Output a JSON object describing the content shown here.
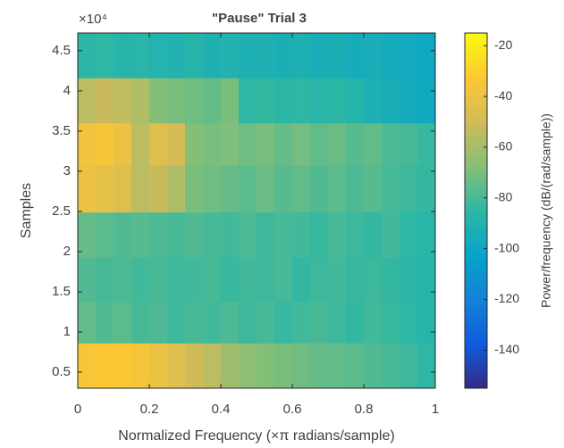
{
  "chart_data": {
    "type": "heatmap",
    "title": "\"Pause\" Trial 3",
    "xlabel": "Normalized Frequency (×π radians/sample)",
    "ylabel": "Samples",
    "y_exponent_label": "×10⁴",
    "colorbar_label": "Power/frequency (dB/(rad/sample))",
    "xlim": [
      0,
      1
    ],
    "xticks": [
      0,
      0.2,
      0.4,
      0.6,
      0.8,
      1
    ],
    "ylim": [
      3000,
      47200
    ],
    "yticks": [
      {
        "value": 5000,
        "label": "0.5"
      },
      {
        "value": 10000,
        "label": "1"
      },
      {
        "value": 15000,
        "label": "1.5"
      },
      {
        "value": 20000,
        "label": "2"
      },
      {
        "value": 25000,
        "label": "2.5"
      },
      {
        "value": 30000,
        "label": "3"
      },
      {
        "value": 35000,
        "label": "3.5"
      },
      {
        "value": 40000,
        "label": "4"
      },
      {
        "value": 45000,
        "label": "4.5"
      }
    ],
    "x_edges": [
      0,
      0.05,
      0.1,
      0.15,
      0.2,
      0.25,
      0.3,
      0.35,
      0.4,
      0.45,
      0.5,
      0.55,
      0.6,
      0.65,
      0.7,
      0.75,
      0.8,
      0.85,
      0.9,
      0.95,
      1
    ],
    "y_edges": [
      3000,
      8600,
      13800,
      19300,
      24900,
      30800,
      36000,
      41600,
      47200
    ],
    "clim": [
      -155,
      -15
    ],
    "cticks": [
      -140,
      -120,
      -100,
      -80,
      -60,
      -40,
      -20
    ],
    "colormap": [
      "#352a87",
      "#0f5cdd",
      "#1481d6",
      "#06a4ca",
      "#2eb7a4",
      "#87bf77",
      "#d1bb59",
      "#fec832",
      "#f9fb0e"
    ],
    "values": [
      [
        -35,
        -33,
        -34,
        -36,
        -40,
        -45,
        -50,
        -55,
        -62,
        -66,
        -68,
        -70,
        -72,
        -74,
        -75,
        -76,
        -78,
        -80,
        -82,
        -85
      ],
      [
        -75,
        -78,
        -76,
        -80,
        -79,
        -82,
        -80,
        -81,
        -79,
        -82,
        -80,
        -83,
        -81,
        -80,
        -82,
        -84,
        -81,
        -83,
        -85,
        -88
      ],
      [
        -78,
        -80,
        -79,
        -81,
        -80,
        -82,
        -81,
        -80,
        -83,
        -81,
        -82,
        -80,
        -84,
        -82,
        -81,
        -83,
        -82,
        -84,
        -86,
        -88
      ],
      [
        -74,
        -76,
        -78,
        -77,
        -79,
        -80,
        -78,
        -80,
        -81,
        -79,
        -82,
        -80,
        -81,
        -83,
        -80,
        -82,
        -84,
        -81,
        -85,
        -87
      ],
      [
        -40,
        -42,
        -45,
        -55,
        -52,
        -58,
        -70,
        -72,
        -74,
        -76,
        -73,
        -77,
        -75,
        -78,
        -76,
        -79,
        -77,
        -80,
        -82,
        -84
      ],
      [
        -38,
        -36,
        -40,
        -55,
        -45,
        -48,
        -68,
        -70,
        -69,
        -72,
        -70,
        -74,
        -71,
        -75,
        -73,
        -77,
        -75,
        -79,
        -80,
        -83
      ],
      [
        -55,
        -52,
        -54,
        -58,
        -68,
        -70,
        -72,
        -74,
        -70,
        -85,
        -84,
        -86,
        -85,
        -87,
        -86,
        -88,
        -92,
        -94,
        -96,
        -98
      ],
      [
        -86,
        -85,
        -88,
        -87,
        -89,
        -90,
        -88,
        -91,
        -90,
        -92,
        -91,
        -93,
        -92,
        -94,
        -93,
        -95,
        -94,
        -96,
        -97,
        -99
      ]
    ]
  }
}
